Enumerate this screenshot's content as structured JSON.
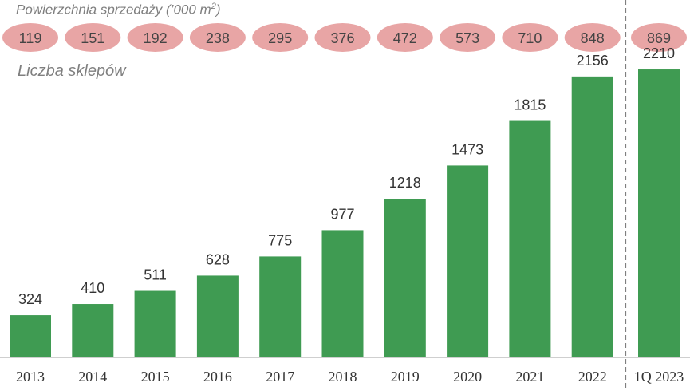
{
  "chart_data": {
    "type": "bar",
    "categories": [
      "2013",
      "2014",
      "2015",
      "2016",
      "2017",
      "2018",
      "2019",
      "2020",
      "2021",
      "2022",
      "1Q 2023"
    ],
    "values": [
      324,
      410,
      511,
      628,
      775,
      977,
      1218,
      1473,
      1815,
      2156,
      2210
    ],
    "series_name": "Liczba sklepów",
    "sales_area_title": "Powierzchnia sprzedaży (’000 m",
    "sales_area_unit_sup": "2",
    "sales_area_title_end": ")",
    "sales_area": [
      119,
      151,
      192,
      238,
      295,
      376,
      472,
      573,
      710,
      848,
      869
    ],
    "ylim": [
      0,
      2400
    ],
    "grid": false,
    "colors": {
      "bar": "#3f9b52",
      "ellipse": "#e8a5a5",
      "text": "#333333",
      "axis": "#bfbfbf",
      "divider": "#7f7f7f"
    }
  }
}
